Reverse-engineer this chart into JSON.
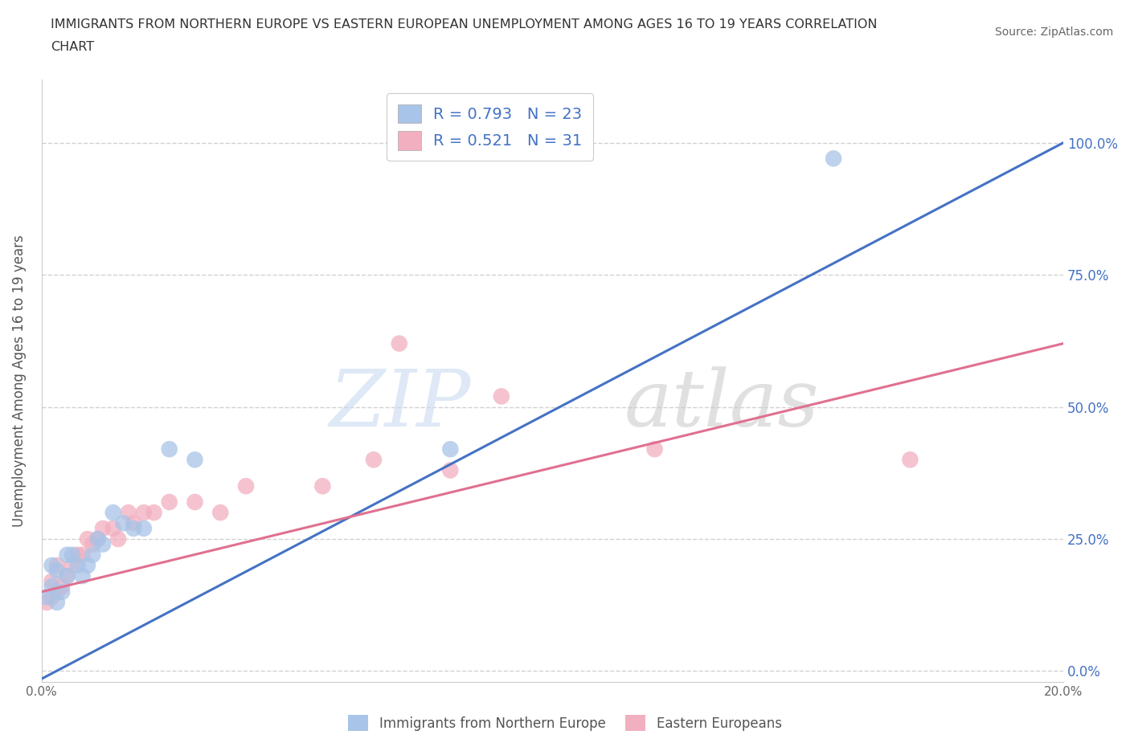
{
  "title": "IMMIGRANTS FROM NORTHERN EUROPE VS EASTERN EUROPEAN UNEMPLOYMENT AMONG AGES 16 TO 19 YEARS CORRELATION\nCHART",
  "source_text": "Source: ZipAtlas.com",
  "ylabel": "Unemployment Among Ages 16 to 19 years",
  "xlim": [
    0.0,
    0.2
  ],
  "ylim": [
    -0.02,
    1.12
  ],
  "yticks": [
    0.0,
    0.25,
    0.5,
    0.75,
    1.0
  ],
  "ytick_labels": [
    "0.0%",
    "25.0%",
    "50.0%",
    "75.0%",
    "100.0%"
  ],
  "xticks": [
    0.0,
    0.05,
    0.1,
    0.15,
    0.2
  ],
  "xtick_labels": [
    "0.0%",
    "",
    "",
    "",
    "20.0%"
  ],
  "blue_color": "#a8c4e8",
  "pink_color": "#f2afc0",
  "blue_line_color": "#4472c4",
  "pink_line_color": "#e07090",
  "blue_scatter_x": [
    0.001,
    0.002,
    0.002,
    0.003,
    0.003,
    0.004,
    0.005,
    0.005,
    0.006,
    0.007,
    0.008,
    0.009,
    0.01,
    0.011,
    0.012,
    0.014,
    0.016,
    0.018,
    0.02,
    0.025,
    0.03,
    0.08,
    0.155
  ],
  "blue_scatter_y": [
    0.14,
    0.16,
    0.2,
    0.13,
    0.19,
    0.15,
    0.18,
    0.22,
    0.22,
    0.2,
    0.18,
    0.2,
    0.22,
    0.25,
    0.24,
    0.3,
    0.28,
    0.27,
    0.27,
    0.42,
    0.4,
    0.42,
    0.97
  ],
  "pink_scatter_x": [
    0.001,
    0.002,
    0.002,
    0.003,
    0.003,
    0.004,
    0.005,
    0.006,
    0.007,
    0.008,
    0.009,
    0.01,
    0.011,
    0.012,
    0.014,
    0.015,
    0.017,
    0.018,
    0.02,
    0.022,
    0.025,
    0.03,
    0.035,
    0.04,
    0.055,
    0.065,
    0.07,
    0.08,
    0.09,
    0.12,
    0.17
  ],
  "pink_scatter_y": [
    0.13,
    0.14,
    0.17,
    0.15,
    0.2,
    0.16,
    0.18,
    0.2,
    0.22,
    0.22,
    0.25,
    0.24,
    0.25,
    0.27,
    0.27,
    0.25,
    0.3,
    0.28,
    0.3,
    0.3,
    0.32,
    0.32,
    0.3,
    0.35,
    0.35,
    0.4,
    0.62,
    0.38,
    0.52,
    0.42,
    0.4
  ],
  "blue_line_x": [
    -0.005,
    0.2
  ],
  "blue_line_y": [
    -0.04,
    1.0
  ],
  "pink_line_x": [
    0.0,
    0.2
  ],
  "pink_line_y": [
    0.15,
    0.62
  ]
}
